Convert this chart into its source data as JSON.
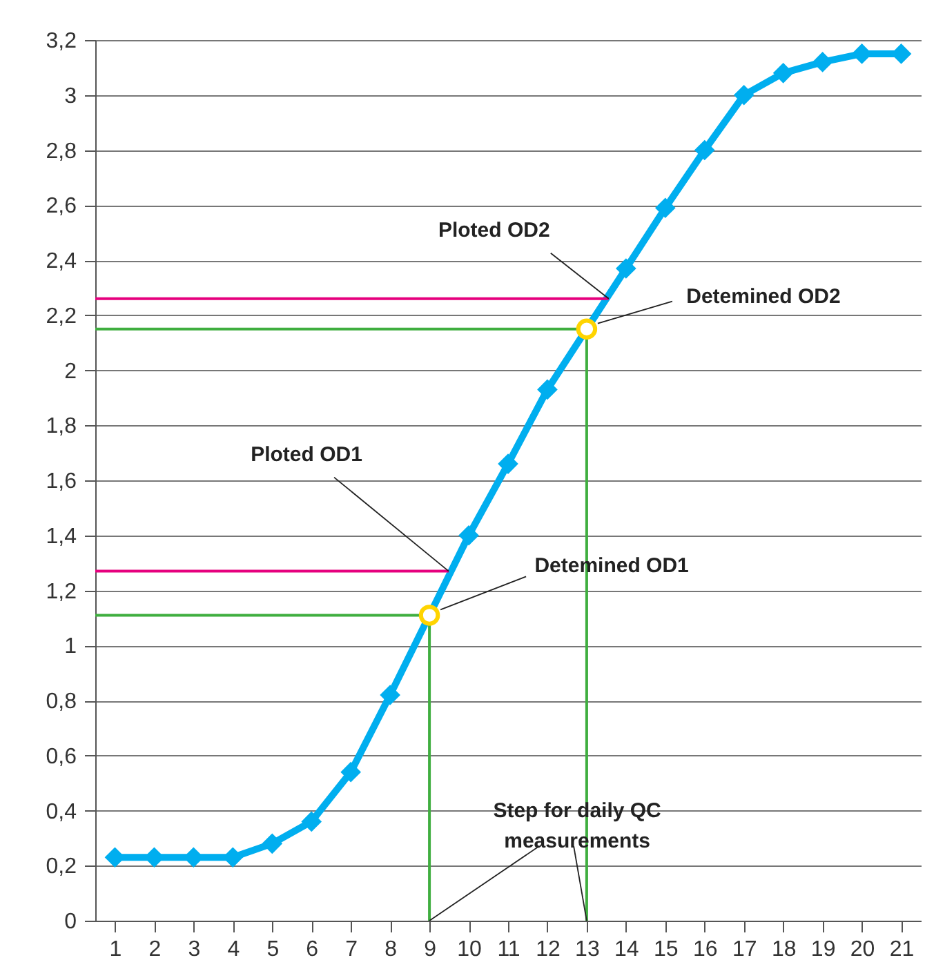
{
  "chart_data": {
    "type": "line",
    "xlim": [
      0.5,
      21.5
    ],
    "xticks": [
      1,
      2,
      3,
      4,
      5,
      6,
      7,
      8,
      9,
      10,
      11,
      12,
      13,
      14,
      15,
      16,
      17,
      18,
      19,
      20,
      21
    ],
    "ylim": [
      0,
      3.2
    ],
    "yticks": [
      0,
      {
        "value": 0.2,
        "label": "0,2"
      },
      {
        "value": 0.4,
        "label": "0,4"
      },
      {
        "value": 0.6,
        "label": "0,6"
      },
      {
        "value": 0.8,
        "label": "0,8"
      },
      1,
      {
        "value": 1.2,
        "label": "1,2"
      },
      {
        "value": 1.4,
        "label": "1,4"
      },
      {
        "value": 1.6,
        "label": "1,6"
      },
      {
        "value": 1.8,
        "label": "1,8"
      },
      2,
      {
        "value": 2.2,
        "label": "2,2"
      },
      {
        "value": 2.4,
        "label": "2,4"
      },
      {
        "value": 2.6,
        "label": "2,6"
      },
      {
        "value": 2.8,
        "label": "2,8"
      },
      3,
      {
        "value": 3.2,
        "label": "3,2"
      }
    ],
    "grid": "y",
    "line_style": "solid",
    "series": [
      {
        "type": "line",
        "marker": "none",
        "color": "#00aeef",
        "x": [
          1,
          2,
          3,
          4,
          5,
          6,
          7,
          8,
          9,
          10,
          11,
          12,
          13,
          14,
          15,
          16,
          17,
          18,
          19,
          20,
          21
        ],
        "values": [
          0.23,
          0.23,
          0.23,
          0.23,
          0.28,
          0.36,
          0.54,
          0.82,
          1.11,
          1.4,
          1.66,
          1.93,
          2.15,
          2.37,
          2.59,
          2.8,
          3.0,
          3.08,
          3.12,
          3.15,
          3.15
        ]
      },
      {
        "type": "scatter",
        "marker": "diamond",
        "color": "#00aeef",
        "x": [
          1,
          2,
          3,
          4,
          5,
          6,
          7,
          8,
          9,
          10,
          11,
          12,
          13,
          14,
          15,
          16,
          17,
          18,
          19,
          20,
          21
        ],
        "values": [
          0.23,
          0.23,
          0.23,
          0.23,
          0.28,
          0.36,
          0.54,
          0.82,
          null,
          1.4,
          1.66,
          1.93,
          null,
          2.37,
          2.59,
          2.8,
          3.0,
          3.08,
          3.12,
          3.15,
          3.15
        ]
      },
      {
        "type": "line",
        "marker": "none",
        "color": "#e6007e",
        "x": [
          0.5,
          9.49
        ],
        "values": [
          1.27,
          1.27
        ]
      },
      {
        "type": "line",
        "marker": "none",
        "color": "#e6007e",
        "x": [
          0.5,
          13.56
        ],
        "values": [
          2.26,
          2.26
        ]
      },
      {
        "type": "line",
        "marker": "none",
        "color": "#3fae3f",
        "x": [
          0.5,
          9,
          9
        ],
        "values": [
          1.11,
          1.11,
          0
        ]
      },
      {
        "type": "line",
        "marker": "none",
        "color": "#3fae3f",
        "x": [
          0.5,
          13,
          13
        ],
        "values": [
          2.15,
          2.15,
          0
        ]
      },
      {
        "type": "scatter",
        "marker": "circle",
        "color": "#ffd400",
        "x": [
          9,
          13
        ],
        "values": [
          1.11,
          2.15
        ]
      }
    ],
    "annotations": [
      {
        "text": "Ploted OD2",
        "x": 13.56,
        "y": 2.26
      },
      {
        "text": "Detemined OD2",
        "x": 13,
        "y": 2.15
      },
      {
        "text": "Ploted OD1",
        "x": 9.49,
        "y": 1.27
      },
      {
        "text": "Detemined OD1",
        "x": 9,
        "y": 1.11
      },
      {
        "text": "Step for daily QC\nmeasurements",
        "x": 9,
        "y": 0
      }
    ]
  }
}
